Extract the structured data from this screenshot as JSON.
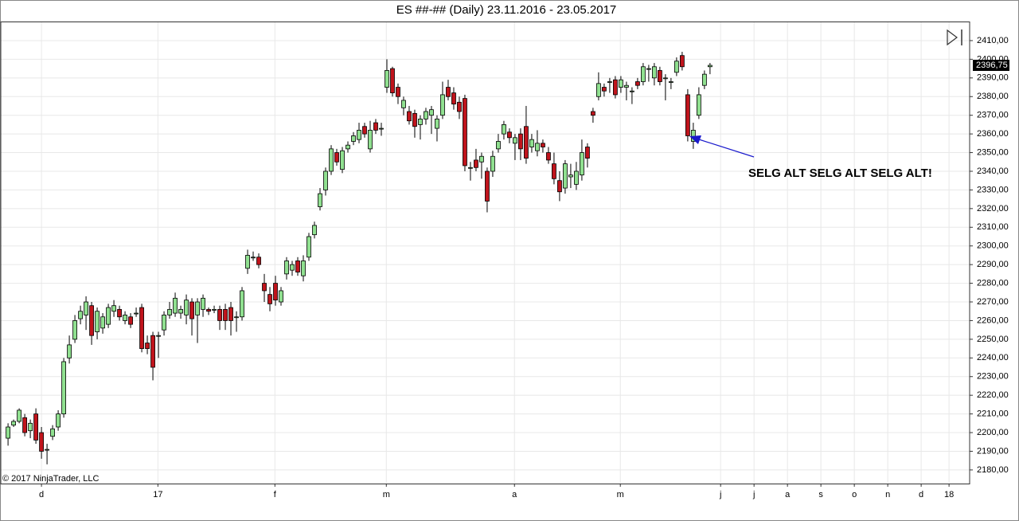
{
  "chart_data": {
    "type": "candlestick",
    "title": "ES ##-## (Daily)  23.11.2016 - 23.05.2017",
    "annotation": "SELG ALT SELG ALT SELG ALT!",
    "copyright": "© 2017 NinjaTrader, LLC",
    "last_price": {
      "value": 2396.75,
      "label": "2396,75"
    },
    "up_color": "#90e090",
    "down_color": "#c0141c",
    "grid": true,
    "x": [
      0,
      1,
      2,
      3,
      4,
      5,
      6,
      7,
      8,
      9,
      10,
      11,
      12,
      13,
      14,
      15,
      16,
      17,
      18,
      19,
      20,
      21,
      22,
      23,
      24,
      25,
      26,
      27,
      28,
      29,
      30,
      31,
      32,
      33,
      34,
      35,
      36,
      37,
      38,
      39,
      40,
      41,
      42,
      43,
      44,
      45,
      46,
      47,
      48,
      49,
      50,
      51,
      52,
      53,
      54,
      55,
      56,
      57,
      58,
      59,
      60,
      61,
      62,
      63,
      64,
      65,
      66,
      67,
      68,
      69,
      70,
      71,
      72,
      73,
      74,
      75,
      76,
      77,
      78,
      79,
      80,
      81,
      82,
      83,
      84,
      85,
      86,
      87,
      88,
      89,
      90,
      91,
      92,
      93,
      94,
      95,
      96,
      97,
      98,
      99,
      100,
      101,
      102,
      103,
      104,
      105,
      106,
      107,
      108,
      109,
      110,
      111,
      112,
      113,
      114,
      115,
      116,
      117,
      118,
      119,
      120,
      121,
      122,
      123,
      124,
      125,
      126
    ],
    "open": [
      2197,
      2204,
      2206,
      2208,
      2201,
      2210,
      2200,
      2191,
      2198,
      2203,
      2210,
      2240,
      2250,
      2261,
      2263,
      2268,
      2254,
      2256,
      2258,
      2265,
      2266,
      2260,
      2262,
      2264,
      2267,
      2248,
      2252,
      2252,
      2255,
      2263,
      2264,
      2264,
      2263,
      2270,
      2263,
      2266,
      2266,
      2266,
      2266,
      2266,
      2267,
      2262,
      2262,
      2288,
      2294,
      2294,
      2280,
      2274,
      2280,
      2270,
      2285,
      2287,
      2292,
      2284,
      2294,
      2306,
      2321,
      2330,
      2340,
      2350,
      2341,
      2352,
      2356,
      2357,
      2364,
      2352,
      2366,
      2363,
      2385,
      2395,
      2385,
      2374,
      2372,
      2371,
      2365,
      2368,
      2370,
      2363,
      2370,
      2385,
      2382,
      2377,
      2379,
      2342,
      2346,
      2345,
      2340,
      2340,
      2352,
      2360,
      2361,
      2355,
      2360,
      2364,
      2353,
      2351,
      2355,
      2350,
      2344,
      2335,
      2331,
      2337,
      2333,
      2338,
      2353,
      2372,
      2380,
      2385,
      2388,
      2389,
      2385,
      2385,
      2383,
      2388,
      2388,
      2395,
      2390,
      2394,
      2390,
      2388,
      2393,
      2402,
      2381,
      2356,
      2370,
      2386,
      2396
    ],
    "high": [
      2205,
      2207,
      2213,
      2210,
      2207,
      2213,
      2203,
      2194,
      2204,
      2212,
      2240,
      2252,
      2263,
      2268,
      2273,
      2270,
      2267,
      2264,
      2269,
      2271,
      2268,
      2265,
      2264,
      2267,
      2269,
      2252,
      2254,
      2254,
      2265,
      2270,
      2275,
      2268,
      2274,
      2272,
      2272,
      2274,
      2267,
      2268,
      2268,
      2269,
      2270,
      2265,
      2278,
      2298,
      2297,
      2296,
      2285,
      2278,
      2284,
      2278,
      2294,
      2292,
      2294,
      2295,
      2307,
      2313,
      2331,
      2342,
      2354,
      2352,
      2353,
      2356,
      2361,
      2366,
      2366,
      2367,
      2368,
      2366,
      2400,
      2396,
      2387,
      2380,
      2375,
      2373,
      2370,
      2374,
      2375,
      2370,
      2388,
      2389,
      2385,
      2380,
      2381,
      2345,
      2352,
      2350,
      2342,
      2351,
      2360,
      2367,
      2363,
      2360,
      2363,
      2375,
      2360,
      2362,
      2357,
      2353,
      2350,
      2340,
      2346,
      2344,
      2345,
      2357,
      2355,
      2374,
      2393,
      2387,
      2390,
      2391,
      2391,
      2388,
      2385,
      2390,
      2398,
      2397,
      2398,
      2396,
      2392,
      2390,
      2401,
      2404,
      2384,
      2366,
      2385,
      2394,
      2398
    ],
    "low": [
      2193,
      2203,
      2205,
      2198,
      2197,
      2194,
      2186,
      2183,
      2196,
      2201,
      2208,
      2237,
      2248,
      2258,
      2255,
      2247,
      2250,
      2253,
      2256,
      2262,
      2260,
      2258,
      2256,
      2262,
      2243,
      2242,
      2228,
      2240,
      2252,
      2261,
      2262,
      2261,
      2258,
      2252,
      2248,
      2262,
      2263,
      2264,
      2255,
      2255,
      2252,
      2254,
      2260,
      2285,
      2292,
      2288,
      2270,
      2265,
      2268,
      2268,
      2282,
      2284,
      2284,
      2281,
      2292,
      2304,
      2319,
      2327,
      2338,
      2343,
      2339,
      2350,
      2354,
      2355,
      2358,
      2350,
      2360,
      2359,
      2382,
      2380,
      2376,
      2370,
      2365,
      2358,
      2357,
      2365,
      2360,
      2356,
      2368,
      2378,
      2373,
      2368,
      2340,
      2335,
      2340,
      2336,
      2318,
      2337,
      2350,
      2357,
      2355,
      2346,
      2346,
      2344,
      2350,
      2348,
      2350,
      2344,
      2333,
      2324,
      2328,
      2331,
      2330,
      2335,
      2342,
      2366,
      2378,
      2380,
      2382,
      2379,
      2382,
      2378,
      2376,
      2384,
      2386,
      2388,
      2386,
      2386,
      2378,
      2384,
      2391,
      2394,
      2356,
      2352,
      2368,
      2384,
      2392
    ],
    "close": [
      2203,
      2206,
      2212,
      2200,
      2205,
      2196,
      2190,
      2191,
      2202,
      2210,
      2238,
      2247,
      2260,
      2265,
      2270,
      2252,
      2265,
      2262,
      2267,
      2268,
      2262,
      2263,
      2258,
      2264,
      2245,
      2245,
      2235,
      2252,
      2263,
      2266,
      2272,
      2266,
      2271,
      2261,
      2270,
      2272,
      2265,
      2266,
      2260,
      2260,
      2260,
      2262,
      2276,
      2295,
      2294,
      2290,
      2276,
      2269,
      2271,
      2276,
      2292,
      2290,
      2286,
      2292,
      2305,
      2311,
      2328,
      2340,
      2352,
      2345,
      2351,
      2354,
      2359,
      2362,
      2360,
      2362,
      2362,
      2363,
      2394,
      2382,
      2380,
      2378,
      2367,
      2364,
      2368,
      2372,
      2373,
      2368,
      2381,
      2380,
      2376,
      2372,
      2343,
      2342,
      2342,
      2348,
      2324,
      2348,
      2356,
      2365,
      2358,
      2358,
      2352,
      2347,
      2357,
      2355,
      2353,
      2346,
      2336,
      2329,
      2344,
      2338,
      2340,
      2350,
      2347,
      2370,
      2387,
      2383,
      2388,
      2381,
      2389,
      2386,
      2383,
      2386,
      2396,
      2395,
      2396,
      2388,
      2390,
      2388,
      2399,
      2396,
      2359,
      2362,
      2381,
      2392,
      2396.75
    ],
    "xlim": [
      -1.3,
      172.6
    ],
    "xticks": [
      {
        "value": 6,
        "label": "d"
      },
      {
        "value": 26.9,
        "label": "17"
      },
      {
        "value": 47.9,
        "label": "f"
      },
      {
        "value": 67.9,
        "label": "m"
      },
      {
        "value": 90.9,
        "label": "a"
      },
      {
        "value": 109.9,
        "label": "m"
      },
      {
        "value": 127.9,
        "label": "j"
      },
      {
        "value": 133.9,
        "label": "j"
      },
      {
        "value": 139.9,
        "label": "a"
      },
      {
        "value": 145.9,
        "label": "s"
      },
      {
        "value": 151.9,
        "label": "o"
      },
      {
        "value": 157.9,
        "label": "n"
      },
      {
        "value": 163.9,
        "label": "d"
      },
      {
        "value": 168.9,
        "label": "18"
      }
    ],
    "ylim": [
      2172.7,
      2419.8
    ],
    "yticks": [
      {
        "value": 2180,
        "label": "2180,00"
      },
      {
        "value": 2190,
        "label": "2190,00"
      },
      {
        "value": 2200,
        "label": "2200,00"
      },
      {
        "value": 2210,
        "label": "2210,00"
      },
      {
        "value": 2220,
        "label": "2220,00"
      },
      {
        "value": 2230,
        "label": "2230,00"
      },
      {
        "value": 2240,
        "label": "2240,00"
      },
      {
        "value": 2250,
        "label": "2250,00"
      },
      {
        "value": 2260,
        "label": "2260,00"
      },
      {
        "value": 2270,
        "label": "2270,00"
      },
      {
        "value": 2280,
        "label": "2280,00"
      },
      {
        "value": 2290,
        "label": "2290,00"
      },
      {
        "value": 2300,
        "label": "2300,00"
      },
      {
        "value": 2310,
        "label": "2310,00"
      },
      {
        "value": 2320,
        "label": "2320,00"
      },
      {
        "value": 2330,
        "label": "2330,00"
      },
      {
        "value": 2340,
        "label": "2340,00"
      },
      {
        "value": 2350,
        "label": "2350,00"
      },
      {
        "value": 2360,
        "label": "2360,00"
      },
      {
        "value": 2370,
        "label": "2370,00"
      },
      {
        "value": 2380,
        "label": "2380,00"
      },
      {
        "value": 2390,
        "label": "2390,00"
      },
      {
        "value": 2400,
        "label": "2400,00"
      },
      {
        "value": 2410,
        "label": "2410,00"
      }
    ]
  }
}
